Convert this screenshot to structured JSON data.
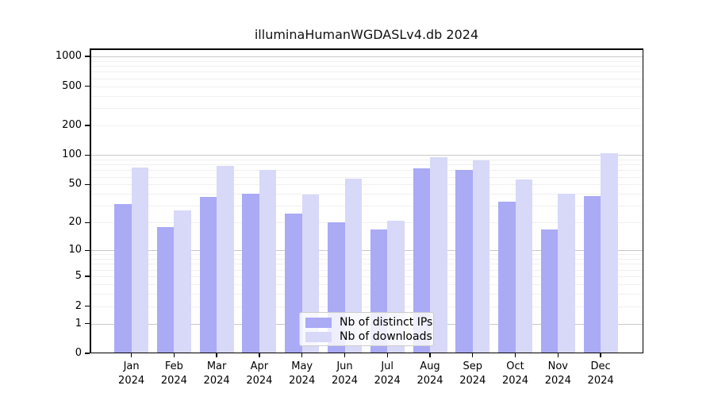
{
  "title": "illuminaHumanWGDASLv4.db 2024",
  "chart_data": {
    "type": "bar",
    "title": "illuminaHumanWGDASLv4.db 2024",
    "scale": "log10(value+1)",
    "categories": [
      "Jan",
      "Feb",
      "Mar",
      "Apr",
      "May",
      "Jun",
      "Jul",
      "Aug",
      "Sep",
      "Oct",
      "Nov",
      "Dec"
    ],
    "category_year": "2024",
    "series": [
      {
        "name": "Nb of distinct IPs",
        "color": "#aaaaf5",
        "values": [
          31,
          18,
          37,
          40,
          25,
          20,
          17,
          73,
          70,
          33,
          17,
          38
        ]
      },
      {
        "name": "Nb of downloads",
        "color": "#d8d8f8",
        "values": [
          74,
          27,
          78,
          71,
          39,
          57,
          21,
          95,
          88,
          56,
          40,
          105
        ]
      }
    ],
    "y_ticks": [
      0,
      1,
      2,
      5,
      10,
      20,
      50,
      100,
      200,
      500,
      1000
    ],
    "ylim": [
      0,
      1200
    ],
    "xlabel": "",
    "ylabel": "",
    "grid": true,
    "legend_position": "bottom-center",
    "colors": {
      "major_grid": "#c9c9c9",
      "minor_grid": "#f0f0f0",
      "spine": "#000000",
      "background": "#ffffff"
    }
  }
}
